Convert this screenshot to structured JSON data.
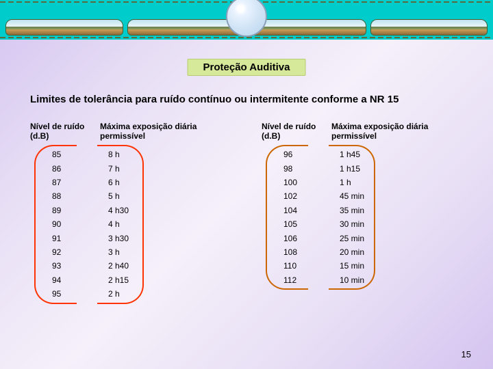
{
  "title": "Proteção Auditiva",
  "subtitle": "Limites de tolerância para ruído contínuo ou intermitente conforme a NR 15",
  "page_number": "15",
  "headers": {
    "col1": "Nível de ruído (d.B)",
    "col2": "Máxima exposição diária permissível"
  },
  "block1": {
    "levels": [
      "85",
      "86",
      "87",
      "88",
      "89",
      "90",
      "91",
      "92",
      "93",
      "94",
      "95"
    ],
    "exposures": [
      "8 h",
      "7 h",
      "6 h",
      "5 h",
      "4 h30",
      "4 h",
      "3 h30",
      "3 h",
      "2 h40",
      "2 h15",
      "2 h"
    ]
  },
  "block2": {
    "levels": [
      "96",
      "98",
      "100",
      "102",
      "104",
      "105",
      "106",
      "108",
      "110",
      "112"
    ],
    "exposures": [
      "1 h45",
      "1 h15",
      "1 h",
      "45 min",
      "35 min",
      "30 min",
      "25 min",
      "20 min",
      "15 min",
      "10 min"
    ]
  },
  "colors": {
    "bracket_left": "#ff3300",
    "bracket_right": "#cc6600"
  }
}
